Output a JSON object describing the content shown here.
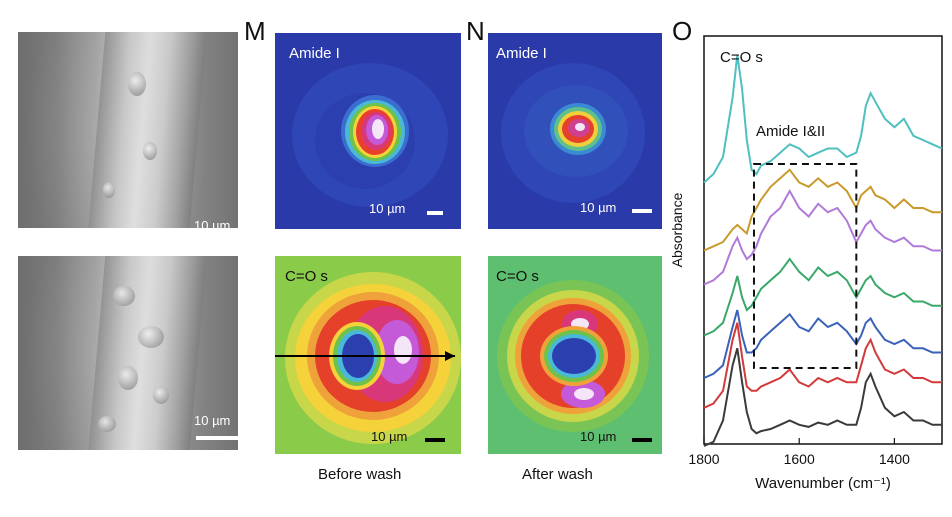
{
  "panels": {
    "m_letter": "M",
    "n_letter": "N",
    "o_letter": "O"
  },
  "sem": {
    "top_scale": "10 µm",
    "bottom_scale": "10 µm"
  },
  "maps": {
    "m_top_label": "Amide I",
    "m_top_scale": "10 µm",
    "n_top_label": "Amide I",
    "n_top_scale": "10 µm",
    "m_bottom_label": "C=O s",
    "m_bottom_scale": "10 µm",
    "n_bottom_label": "C=O s",
    "n_bottom_scale": "10 µm"
  },
  "captions": {
    "before": "Before wash",
    "after": "After wash"
  },
  "colors": {
    "map_blue": "#2a3aa8",
    "map_green": "#6bc24a",
    "series_teal": "#4fbfc0",
    "series_gold": "#c89a2a",
    "series_purple": "#b07ad8",
    "series_green": "#3aa86a",
    "series_blue": "#3a62b8",
    "series_red": "#d23a3a",
    "series_black": "#3a3a3a"
  },
  "chart_data": {
    "type": "line",
    "title": "",
    "xlabel": "Wavenumber (cm⁻¹)",
    "ylabel": "Absorbance",
    "xlim": [
      1800,
      1300
    ],
    "xticks": [
      1800,
      1600,
      1400
    ],
    "annotations": [
      "C=O s",
      "Amide I&II"
    ],
    "highlight_box_x": [
      1695,
      1480
    ],
    "series": [
      {
        "name": "teal",
        "offset": 6.0,
        "x": [
          1800,
          1780,
          1760,
          1740,
          1730,
          1720,
          1710,
          1700,
          1690,
          1680,
          1660,
          1640,
          1620,
          1600,
          1580,
          1560,
          1540,
          1520,
          1500,
          1480,
          1470,
          1460,
          1450,
          1440,
          1420,
          1400,
          1380,
          1360,
          1340,
          1320,
          1300
        ],
        "y": [
          0.2,
          0.4,
          0.8,
          2.2,
          3.2,
          2.4,
          1.2,
          0.5,
          0.4,
          0.6,
          0.7,
          0.9,
          1.1,
          1.0,
          0.8,
          0.9,
          1.0,
          1.0,
          0.8,
          0.9,
          1.3,
          2.0,
          2.3,
          2.1,
          1.7,
          1.5,
          1.7,
          1.3,
          1.2,
          1.1,
          1.0
        ]
      },
      {
        "name": "gold",
        "offset": 4.6,
        "x": [
          1800,
          1780,
          1760,
          1740,
          1730,
          1720,
          1710,
          1700,
          1690,
          1680,
          1660,
          1640,
          1620,
          1600,
          1580,
          1560,
          1540,
          1520,
          1500,
          1480,
          1470,
          1460,
          1450,
          1440,
          1420,
          1400,
          1380,
          1360,
          1340,
          1320,
          1300
        ],
        "y": [
          0.0,
          0.1,
          0.2,
          0.5,
          0.6,
          0.5,
          0.4,
          0.8,
          1.0,
          1.2,
          1.5,
          1.7,
          1.9,
          1.6,
          1.5,
          1.7,
          1.5,
          1.6,
          1.4,
          1.0,
          1.3,
          1.4,
          1.5,
          1.3,
          1.2,
          1.0,
          1.2,
          1.0,
          1.0,
          0.9,
          0.9
        ]
      },
      {
        "name": "purple",
        "offset": 3.8,
        "x": [
          1800,
          1780,
          1760,
          1740,
          1730,
          1720,
          1710,
          1700,
          1690,
          1680,
          1660,
          1640,
          1620,
          1600,
          1580,
          1560,
          1540,
          1520,
          1500,
          1480,
          1470,
          1460,
          1450,
          1440,
          1420,
          1400,
          1380,
          1360,
          1340,
          1320,
          1300
        ],
        "y": [
          0.0,
          0.1,
          0.3,
          0.9,
          1.1,
          0.8,
          0.6,
          0.7,
          0.9,
          1.2,
          1.6,
          1.8,
          2.2,
          1.8,
          1.6,
          1.9,
          1.7,
          1.8,
          1.5,
          1.0,
          1.2,
          1.4,
          1.5,
          1.3,
          1.1,
          1.0,
          1.1,
          0.9,
          0.9,
          0.8,
          0.8
        ]
      },
      {
        "name": "green",
        "offset": 2.6,
        "x": [
          1800,
          1780,
          1760,
          1740,
          1730,
          1720,
          1710,
          1700,
          1690,
          1680,
          1660,
          1640,
          1620,
          1600,
          1580,
          1560,
          1540,
          1520,
          1500,
          1480,
          1470,
          1460,
          1450,
          1440,
          1420,
          1400,
          1380,
          1360,
          1340,
          1320,
          1300
        ],
        "y": [
          0.0,
          0.1,
          0.3,
          1.0,
          1.4,
          0.9,
          0.6,
          0.7,
          0.9,
          1.1,
          1.3,
          1.5,
          1.8,
          1.5,
          1.3,
          1.6,
          1.4,
          1.5,
          1.3,
          0.9,
          1.1,
          1.3,
          1.4,
          1.2,
          1.0,
          0.9,
          1.0,
          0.8,
          0.8,
          0.7,
          0.7
        ]
      },
      {
        "name": "blue",
        "offset": 1.6,
        "x": [
          1800,
          1780,
          1760,
          1740,
          1730,
          1720,
          1710,
          1700,
          1690,
          1680,
          1660,
          1640,
          1620,
          1600,
          1580,
          1560,
          1540,
          1520,
          1500,
          1480,
          1470,
          1460,
          1450,
          1440,
          1420,
          1400,
          1380,
          1360,
          1340,
          1320,
          1300
        ],
        "y": [
          0.0,
          0.1,
          0.3,
          1.2,
          1.6,
          1.0,
          0.6,
          0.6,
          0.7,
          0.9,
          1.1,
          1.3,
          1.5,
          1.2,
          1.1,
          1.4,
          1.2,
          1.3,
          1.1,
          0.8,
          1.0,
          1.3,
          1.4,
          1.2,
          0.9,
          0.8,
          0.9,
          0.7,
          0.7,
          0.6,
          0.6
        ]
      },
      {
        "name": "red",
        "offset": 0.9,
        "x": [
          1800,
          1780,
          1760,
          1740,
          1730,
          1720,
          1710,
          1700,
          1690,
          1680,
          1660,
          1640,
          1620,
          1600,
          1580,
          1560,
          1540,
          1520,
          1500,
          1480,
          1470,
          1460,
          1450,
          1440,
          1420,
          1400,
          1380,
          1360,
          1340,
          1320,
          1300
        ],
        "y": [
          0.0,
          0.1,
          0.4,
          1.6,
          2.0,
          1.2,
          0.5,
          0.4,
          0.4,
          0.5,
          0.6,
          0.7,
          0.9,
          0.6,
          0.5,
          0.7,
          0.6,
          0.7,
          0.6,
          0.6,
          1.0,
          1.4,
          1.6,
          1.3,
          0.9,
          0.8,
          0.9,
          0.7,
          0.7,
          0.6,
          0.6
        ]
      },
      {
        "name": "black",
        "offset": 0.0,
        "x": [
          1800,
          1780,
          1760,
          1740,
          1730,
          1720,
          1710,
          1700,
          1690,
          1680,
          1660,
          1640,
          1620,
          1600,
          1580,
          1560,
          1540,
          1520,
          1500,
          1480,
          1470,
          1460,
          1450,
          1440,
          1420,
          1400,
          1380,
          1360,
          1340,
          1320,
          1300
        ],
        "y": [
          0.0,
          0.1,
          0.6,
          1.9,
          2.3,
          1.5,
          0.8,
          0.4,
          0.3,
          0.35,
          0.4,
          0.5,
          0.6,
          0.5,
          0.45,
          0.55,
          0.5,
          0.6,
          0.5,
          0.5,
          0.9,
          1.5,
          1.7,
          1.4,
          0.9,
          0.7,
          0.8,
          0.6,
          0.6,
          0.5,
          0.5
        ]
      }
    ]
  }
}
